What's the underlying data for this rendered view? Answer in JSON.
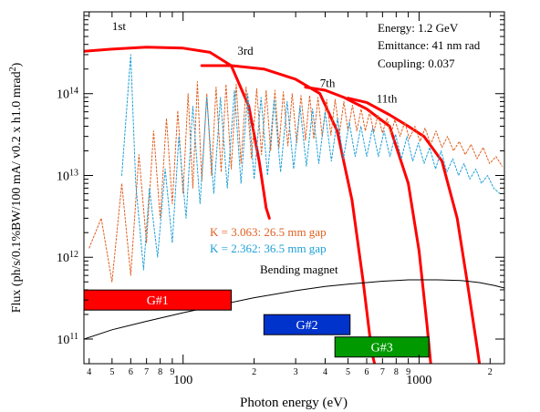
{
  "chart_data": {
    "type": "line",
    "xlabel": "Photon energy (eV)",
    "ylabel": "Flux (ph/s/0.1%BW/100 mA/ v0.2 x h1.0 mrad",
    "ylabel_sup": "2",
    "ylabel_close": ")",
    "x_scale": "log",
    "y_scale": "log",
    "xlim": [
      38,
      2300
    ],
    "ylim": [
      50000000000,
      1000000000000000
    ],
    "x_major_ticks": [
      {
        "value": 100,
        "label": "100"
      },
      {
        "value": 1000,
        "label": "1000"
      }
    ],
    "x_minor_ticks": [
      {
        "value": 40,
        "label": "4"
      },
      {
        "value": 50,
        "label": "5"
      },
      {
        "value": 60,
        "label": "6"
      },
      {
        "value": 70,
        "label": "7"
      },
      {
        "value": 80,
        "label": "8"
      },
      {
        "value": 90,
        "label": "9"
      },
      {
        "value": 200,
        "label": "2"
      },
      {
        "value": 300,
        "label": "3"
      },
      {
        "value": 400,
        "label": "4"
      },
      {
        "value": 500,
        "label": "5"
      },
      {
        "value": 600,
        "label": "6"
      },
      {
        "value": 700,
        "label": "7"
      },
      {
        "value": 800,
        "label": "8"
      },
      {
        "value": 900,
        "label": "9"
      },
      {
        "value": 2000,
        "label": "2"
      }
    ],
    "y_major_ticks": [
      {
        "value": 100000000000,
        "base": "10",
        "exp": "11"
      },
      {
        "value": 1000000000000,
        "base": "10",
        "exp": "12"
      },
      {
        "value": 10000000000000,
        "base": "10",
        "exp": "13"
      },
      {
        "value": 100000000000000,
        "base": "10",
        "exp": "14"
      }
    ],
    "params": {
      "energy": "Energy: 1.2 GeV",
      "emittance": "Emittance: 41 nm rad",
      "coupling": "Coupling: 0.037"
    },
    "legend_text": {
      "k_orange": "K = 3.063: 26.5 mm gap",
      "k_blue": "K = 2.362: 36.5 mm gap",
      "bending": "Bending magnet"
    },
    "harmonic_labels": [
      {
        "label": "1st",
        "x": 50,
        "y": 600000000000000
      },
      {
        "label": "3rd",
        "x": 170,
        "y": 300000000000000
      },
      {
        "label": "7th",
        "x": 380,
        "y": 120000000000000
      },
      {
        "label": "11th",
        "x": 660,
        "y": 78000000000000
      }
    ],
    "gratings": [
      {
        "label": "G#1",
        "x_start": 38,
        "x_end": 160,
        "y_center": 300000000000,
        "color": "#ff0000"
      },
      {
        "label": "G#2",
        "x_start": 220,
        "x_end": 510,
        "y_center": 150000000000,
        "color": "#0033cc"
      },
      {
        "label": "G#3",
        "x_start": 440,
        "x_end": 1100,
        "y_center": 80000000000,
        "color": "#009900"
      }
    ],
    "series": [
      {
        "name": "1st",
        "color": "#ff0000",
        "width": 3,
        "style": "solid",
        "x": [
          38,
          50,
          70,
          100,
          130,
          160,
          190,
          210,
          225,
          232
        ],
        "y": [
          330000000000000,
          350000000000000,
          370000000000000,
          360000000000000,
          320000000000000,
          220000000000000,
          70000000000000,
          15000000000000,
          4000000000000,
          3000000000000
        ]
      },
      {
        "name": "3rd",
        "color": "#ff0000",
        "width": 3,
        "style": "solid",
        "x": [
          120,
          160,
          220,
          300,
          380,
          450,
          520,
          580,
          630,
          660
        ],
        "y": [
          220000000000000,
          220000000000000,
          200000000000000,
          150000000000000,
          100000000000000,
          35000000000000,
          5000000000000,
          500000000000,
          70000000000,
          40000000000
        ]
      },
      {
        "name": "7th",
        "color": "#ff0000",
        "width": 3,
        "style": "solid",
        "x": [
          330,
          400,
          480,
          600,
          750,
          900,
          1000,
          1080,
          1120
        ],
        "y": [
          120000000000000,
          110000000000000,
          90000000000000,
          65000000000000,
          40000000000000,
          8000000000000,
          1200000000000,
          150000000000,
          50000000000
        ]
      },
      {
        "name": "11th",
        "color": "#ff0000",
        "width": 3,
        "style": "solid",
        "x": [
          500,
          600,
          750,
          900,
          1050,
          1250,
          1450,
          1600,
          1750,
          1850
        ],
        "y": [
          88000000000000,
          78000000000000,
          55000000000000,
          40000000000000,
          30000000000000,
          15000000000000,
          3000000000000,
          500000000000,
          90000000000,
          30000000000
        ]
      },
      {
        "name": "K = 3.063: 26.5 mm gap",
        "color": "#e06020",
        "width": 1,
        "style": "dotted",
        "x": [
          40,
          45,
          50,
          55,
          60,
          65,
          70,
          75,
          80,
          85,
          90,
          95,
          100,
          105,
          110,
          115,
          120,
          126,
          132,
          138,
          145,
          152,
          160,
          168,
          176,
          185,
          195,
          205,
          215,
          225,
          235,
          245,
          255,
          266,
          278,
          290,
          303,
          316,
          330,
          344,
          358,
          373,
          389,
          406,
          423,
          441,
          460,
          480,
          500,
          522,
          545,
          568,
          592,
          617,
          643,
          670,
          700,
          730,
          760,
          790,
          830,
          870,
          910,
          960,
          1010,
          1060,
          1120,
          1180,
          1250,
          1320,
          1400,
          1480,
          1570,
          1660,
          1760,
          1870,
          1990,
          2120,
          2250
        ],
        "y": [
          1300000000000,
          3000000000000,
          500000000000,
          8000000000000,
          600000000000,
          18000000000000,
          1500000000000,
          35000000000000,
          3000000000000,
          50000000000000,
          4500000000000,
          62000000000000,
          6000000000000,
          100000000000000,
          7000000000000,
          140000000000000,
          8500000000000,
          100000000000000,
          10000000000000,
          120000000000000,
          11000000000000,
          130000000000000,
          12000000000000,
          130000000000000,
          14000000000000,
          120000000000000,
          16000000000000,
          115000000000000,
          18000000000000,
          110000000000000,
          20000000000000,
          110000000000000,
          22000000000000,
          105000000000000,
          23000000000000,
          100000000000000,
          25000000000000,
          95000000000000,
          27000000000000,
          95000000000000,
          28000000000000,
          90000000000000,
          30000000000000,
          85000000000000,
          31000000000000,
          85000000000000,
          33000000000000,
          80000000000000,
          35000000000000,
          72000000000000,
          35000000000000,
          65000000000000,
          35000000000000,
          60000000000000,
          34000000000000,
          55000000000000,
          33000000000000,
          50000000000000,
          32000000000000,
          48000000000000,
          30000000000000,
          45000000000000,
          28000000000000,
          40000000000000,
          26000000000000,
          38000000000000,
          24000000000000,
          35000000000000,
          22000000000000,
          30000000000000,
          20000000000000,
          26000000000000,
          18000000000000,
          24000000000000,
          16000000000000,
          22000000000000,
          14000000000000,
          17000000000000,
          13000000000000
        ]
      },
      {
        "name": "K = 2.362: 36.5 mm gap",
        "color": "#1ea0d8",
        "width": 1,
        "style": "dotted",
        "x": [
          55,
          60,
          63,
          68,
          72,
          78,
          84,
          90,
          96,
          103,
          110,
          118,
          126,
          135,
          144,
          154,
          165,
          176,
          188,
          200,
          214,
          228,
          243,
          259,
          276,
          294,
          313,
          333,
          354,
          376,
          400,
          425,
          451,
          478,
          506,
          536,
          567,
          600,
          635,
          672,
          711,
          752,
          795,
          841,
          889,
          940,
          994,
          1050,
          1110,
          1175,
          1240,
          1310,
          1390,
          1470,
          1550,
          1640,
          1740,
          1840,
          1950,
          2070,
          2200
        ],
        "y": [
          10000000000000,
          300000000000000,
          8000000000000,
          700000000000,
          7000000000000,
          1000000000000,
          12000000000000,
          1500000000000,
          30000000000000,
          3000000000000,
          70000000000000,
          4500000000000,
          90000000000000,
          6000000000000,
          90000000000000,
          7000000000000,
          110000000000000,
          8000000000000,
          100000000000000,
          9000000000000,
          90000000000000,
          10000000000000,
          85000000000000,
          11000000000000,
          80000000000000,
          12000000000000,
          70000000000000,
          13000000000000,
          65000000000000,
          14000000000000,
          60000000000000,
          15000000000000,
          50000000000000,
          16000000000000,
          45000000000000,
          17000000000000,
          40000000000000,
          17000000000000,
          38000000000000,
          17000000000000,
          35000000000000,
          17000000000000,
          32000000000000,
          16000000000000,
          30000000000000,
          15000000000000,
          25000000000000,
          14000000000000,
          22000000000000,
          12000000000000,
          20000000000000,
          11000000000000,
          16000000000000,
          10000000000000,
          14000000000000,
          9000000000000,
          12000000000000,
          8000000000000,
          10000000000000,
          7000000000000,
          6000000000000
        ]
      },
      {
        "name": "Bending magnet",
        "color": "#000000",
        "width": 1,
        "style": "solid",
        "x": [
          38,
          50,
          70,
          100,
          150,
          200,
          300,
          400,
          500,
          600,
          700,
          800,
          900,
          1000,
          1200,
          1500,
          1800,
          2100,
          2300
        ],
        "y": [
          100000000000,
          130000000000,
          165000000000,
          210000000000,
          270000000000,
          320000000000,
          390000000000,
          440000000000,
          470000000000,
          490000000000,
          510000000000,
          520000000000,
          530000000000,
          530000000000,
          530000000000,
          520000000000,
          490000000000,
          450000000000,
          420000000000
        ]
      }
    ]
  }
}
